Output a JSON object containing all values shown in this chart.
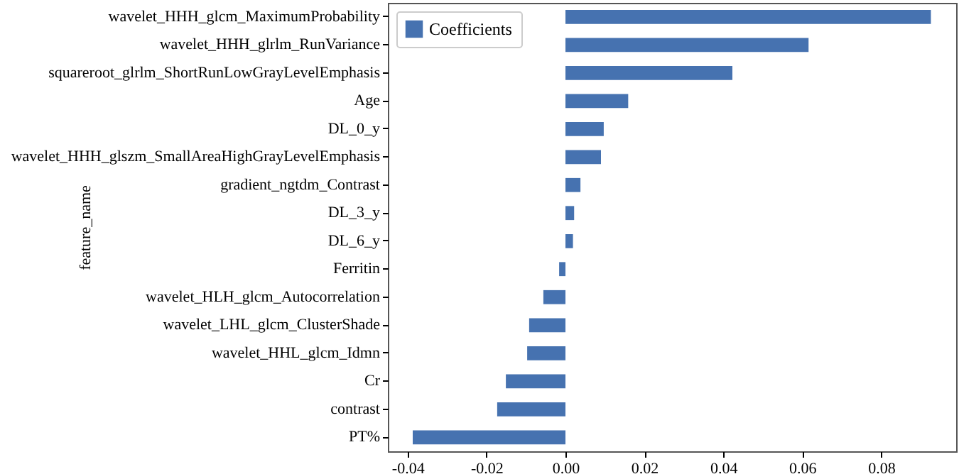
{
  "chart_data": {
    "type": "bar",
    "orientation": "horizontal",
    "ylabel": "feature_name",
    "categories": [
      "wavelet_HHH_glcm_MaximumProbability",
      "wavelet_HHH_glrlm_RunVariance",
      "squareroot_glrlm_ShortRunLowGrayLevelEmphasis",
      "Age",
      "DL_0_y",
      "wavelet_HHH_glszm_SmallAreaHighGrayLevelEmphasis",
      "gradient_ngtdm_Contrast",
      "DL_3_y",
      "DL_6_y",
      "Ferritin",
      "wavelet_HLH_glcm_Autocorrelation",
      "wavelet_LHL_glcm_ClusterShade",
      "wavelet_HHL_glcm_Idmn",
      "Cr",
      "contrast",
      "PT%"
    ],
    "series": [
      {
        "name": "Coefficients",
        "color": "#4672b0",
        "values": [
          0.0926,
          0.0616,
          0.0423,
          0.0159,
          0.0097,
          0.009,
          0.0038,
          0.0022,
          0.0019,
          -0.0016,
          -0.0056,
          -0.0092,
          -0.0097,
          -0.0151,
          -0.0173,
          -0.0387
        ]
      }
    ],
    "xlim": [
      -0.045,
      0.099
    ],
    "xticks": [
      {
        "value": -0.04,
        "label": "-0.04"
      },
      {
        "value": -0.02,
        "label": "-0.02"
      },
      {
        "value": 0,
        "label": "0.00"
      },
      {
        "value": 0.02,
        "label": "0.02"
      },
      {
        "value": 0.04,
        "label": "0.04"
      },
      {
        "value": 0.06,
        "label": "0.06"
      },
      {
        "value": 0.08,
        "label": "0.08"
      }
    ],
    "legend": "top left",
    "grid": false
  }
}
